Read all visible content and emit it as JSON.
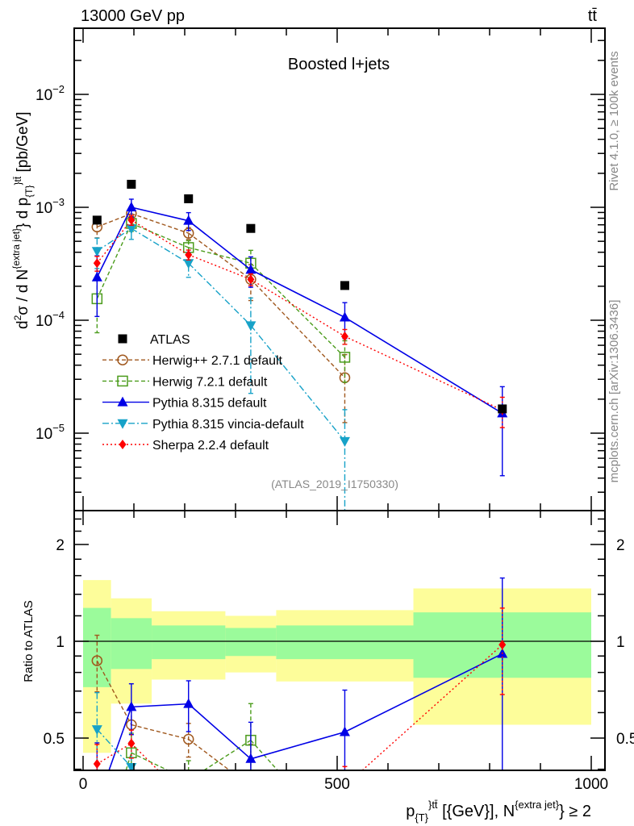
{
  "header": {
    "beam": "13000 GeV pp",
    "process": "tt̄",
    "title": "Boosted l+jets",
    "rivet": "Rivet 4.1.0, ≥ 100k events",
    "mcplots": "mcplots.cern.ch [arXiv:1306.3436]",
    "analysis": "(ATLAS_2019_I1750330)"
  },
  "chart_data": {
    "type": "line",
    "title": "Boosted l+jets",
    "ylabel": {
      "main": "d²σ / d N^{extra jet} d p_{T}^{tt̄} [pb/GeV]",
      "part1": "d",
      "sup1": "2",
      "part2": "σ  /  d N",
      "sup2": "{extra jet}",
      "part3": "} d p",
      "sub3": "{T}",
      "sup3": "}",
      "sup4": "tt̄",
      "part4": " [pb/GeV]"
    },
    "ratio_ylabel": "Ratio to ATLAS",
    "xlabel": {
      "p": "p",
      "sub": "{T}",
      "sup1": "}",
      "sup2": "tt̄",
      "mid": " [{GeV}], N",
      "sup3": "{extra jet}",
      "end": "} ≥ 2"
    },
    "xlim": [
      -20,
      1030
    ],
    "ylim_main": [
      0.0385,
      2.06e-06
    ],
    "ylim_ratio": [
      0.397,
      2.55
    ],
    "yscale": "log",
    "x_tick_labels": [
      "0",
      "500",
      "1000"
    ],
    "x_tick_values": [
      0,
      500,
      1000
    ],
    "y_tick_labels": [
      {
        "base": "10",
        "exp": "−2",
        "value": 0.01
      },
      {
        "base": "10",
        "exp": "−3",
        "value": 0.001
      },
      {
        "base": "10",
        "exp": "−4",
        "value": 0.0001
      },
      {
        "base": "10",
        "exp": "−5",
        "value": 1e-05
      }
    ],
    "ratio_tick_labels": [
      {
        "label": "2",
        "value": 2
      },
      {
        "label": "1",
        "value": 1
      },
      {
        "label": "0.5",
        "value": 0.5
      }
    ],
    "bin_edges": [
      0,
      55,
      135,
      280,
      380,
      650,
      1000
    ],
    "x": [
      27.5,
      95,
      207.5,
      330,
      515,
      825
    ],
    "ratio_bands": {
      "stat": [
        [
          0.72,
          1.27
        ],
        [
          0.82,
          1.18
        ],
        [
          0.88,
          1.12
        ],
        [
          0.9,
          1.1
        ],
        [
          0.88,
          1.12
        ],
        [
          0.77,
          1.23
        ]
      ],
      "total": [
        [
          0.45,
          1.55
        ],
        [
          0.64,
          1.36
        ],
        [
          0.76,
          1.24
        ],
        [
          0.8,
          1.2
        ],
        [
          0.75,
          1.25
        ],
        [
          0.55,
          1.46
        ]
      ],
      "stat_color": "#9bfb9b",
      "total_color": "#fdfd9a"
    },
    "legend_position": "lower-left",
    "series": [
      {
        "name": "ATLAS",
        "key": "atlas",
        "color": "#000000",
        "marker": "square",
        "dash": "",
        "values": [
          0.00077,
          0.0016,
          0.00119,
          0.00065,
          0.000203,
          1.64e-05
        ],
        "err": [
          0.03,
          0.03,
          0.03,
          0.03,
          0.03,
          0.03
        ]
      },
      {
        "name": "Herwig++ 2.7.1 default",
        "key": "herwigpp",
        "color": "#a0581e",
        "marker": "open-circle",
        "dash": "5,3",
        "values": [
          0.00067,
          0.00088,
          0.00059,
          0.00023,
          3.1e-05,
          null
        ],
        "err": [
          0.2,
          0.12,
          0.12,
          0.35,
          0.6,
          null
        ]
      },
      {
        "name": "Herwig 7.2.1 default",
        "key": "herwig7",
        "color": "#4b9c1c",
        "marker": "open-square",
        "dash": "5,3",
        "values": [
          0.000155,
          0.00072,
          0.00044,
          0.00032,
          4.7e-05,
          null
        ],
        "err": [
          0.5,
          0.15,
          0.15,
          0.3,
          0.4,
          null
        ]
      },
      {
        "name": "Pythia 8.315 default",
        "key": "pythia",
        "color": "#0000e6",
        "marker": "triangle-up",
        "dash": "",
        "values": [
          0.00024,
          0.001,
          0.00076,
          0.00028,
          0.000106,
          1.5e-05
        ],
        "err": [
          0.55,
          0.18,
          0.18,
          0.3,
          0.35,
          0.72
        ]
      },
      {
        "name": "Pythia 8.315 vincia-default",
        "key": "vincia",
        "color": "#17a2c8",
        "marker": "triangle-down",
        "dash": "8,3,2,3",
        "values": [
          0.00041,
          0.00065,
          0.00032,
          9e-05,
          8.5e-06,
          null
        ],
        "err": [
          0.3,
          0.2,
          0.25,
          0.75,
          0.9,
          null
        ]
      },
      {
        "name": "Sherpa 2.2.4 default",
        "key": "sherpa",
        "color": "#ff0000",
        "marker": "diamond",
        "dash": "2,3",
        "values": [
          0.00032,
          0.00077,
          0.00038,
          0.00023,
          7.2e-05,
          1.6e-05
        ],
        "err": [
          0.15,
          0.1,
          0.1,
          0.12,
          0.15,
          0.3
        ]
      }
    ]
  }
}
